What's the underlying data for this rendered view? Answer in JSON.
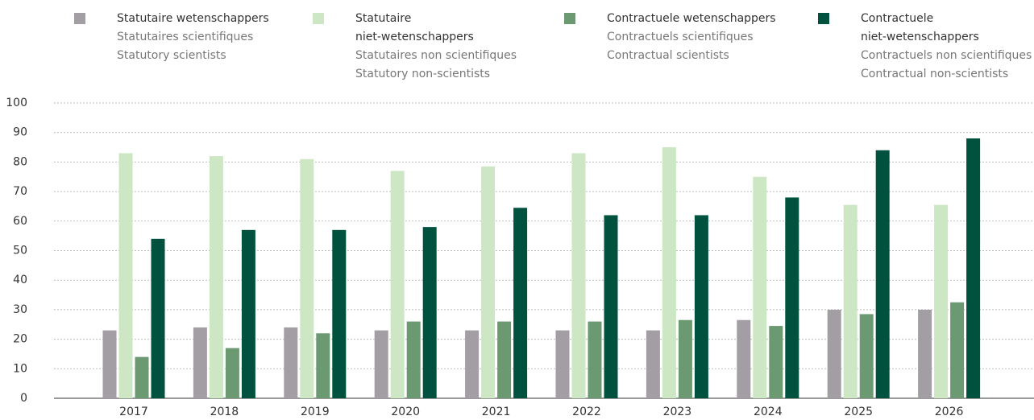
{
  "chart_data": {
    "type": "bar",
    "categories": [
      "2017",
      "2018",
      "2019",
      "2020",
      "2021",
      "2022",
      "2023",
      "2024",
      "2025",
      "2026"
    ],
    "series": [
      {
        "name": "Statutaire wetenschappers",
        "translations": [
          "Statutaires scientifiques",
          "Statutory scientists"
        ],
        "color": "#a39ea3",
        "values": [
          23,
          24,
          24,
          23,
          23,
          23,
          23,
          26.5,
          30,
          30
        ]
      },
      {
        "name": "Statutaire\nniet-wetenschappers",
        "translations": [
          "Statutaires non scientifiques",
          "Statutory non-scientists"
        ],
        "color": "#cde6c4",
        "values": [
          83,
          82,
          81,
          77,
          78.5,
          83,
          85,
          75,
          65.5,
          65.5
        ]
      },
      {
        "name": "Contractuele wetenschappers",
        "translations": [
          "Contractuels scientifiques",
          "Contractual scientists"
        ],
        "color": "#6b9a72",
        "values": [
          14,
          17,
          22,
          26,
          26,
          26,
          26.5,
          24.5,
          28.5,
          32.5
        ]
      },
      {
        "name": "Contractuele\nniet-wetenschappers",
        "translations": [
          "Contractuels non scientifiques",
          "Contractual non-scientists"
        ],
        "color": "#00523f",
        "values": [
          54,
          57,
          57,
          58,
          64.5,
          62,
          62,
          68,
          84,
          88
        ]
      }
    ],
    "ylim": [
      0,
      100
    ],
    "yticks": [
      0,
      10,
      20,
      30,
      40,
      50,
      60,
      70,
      80,
      90,
      100
    ],
    "grid": true,
    "legend": "top"
  }
}
